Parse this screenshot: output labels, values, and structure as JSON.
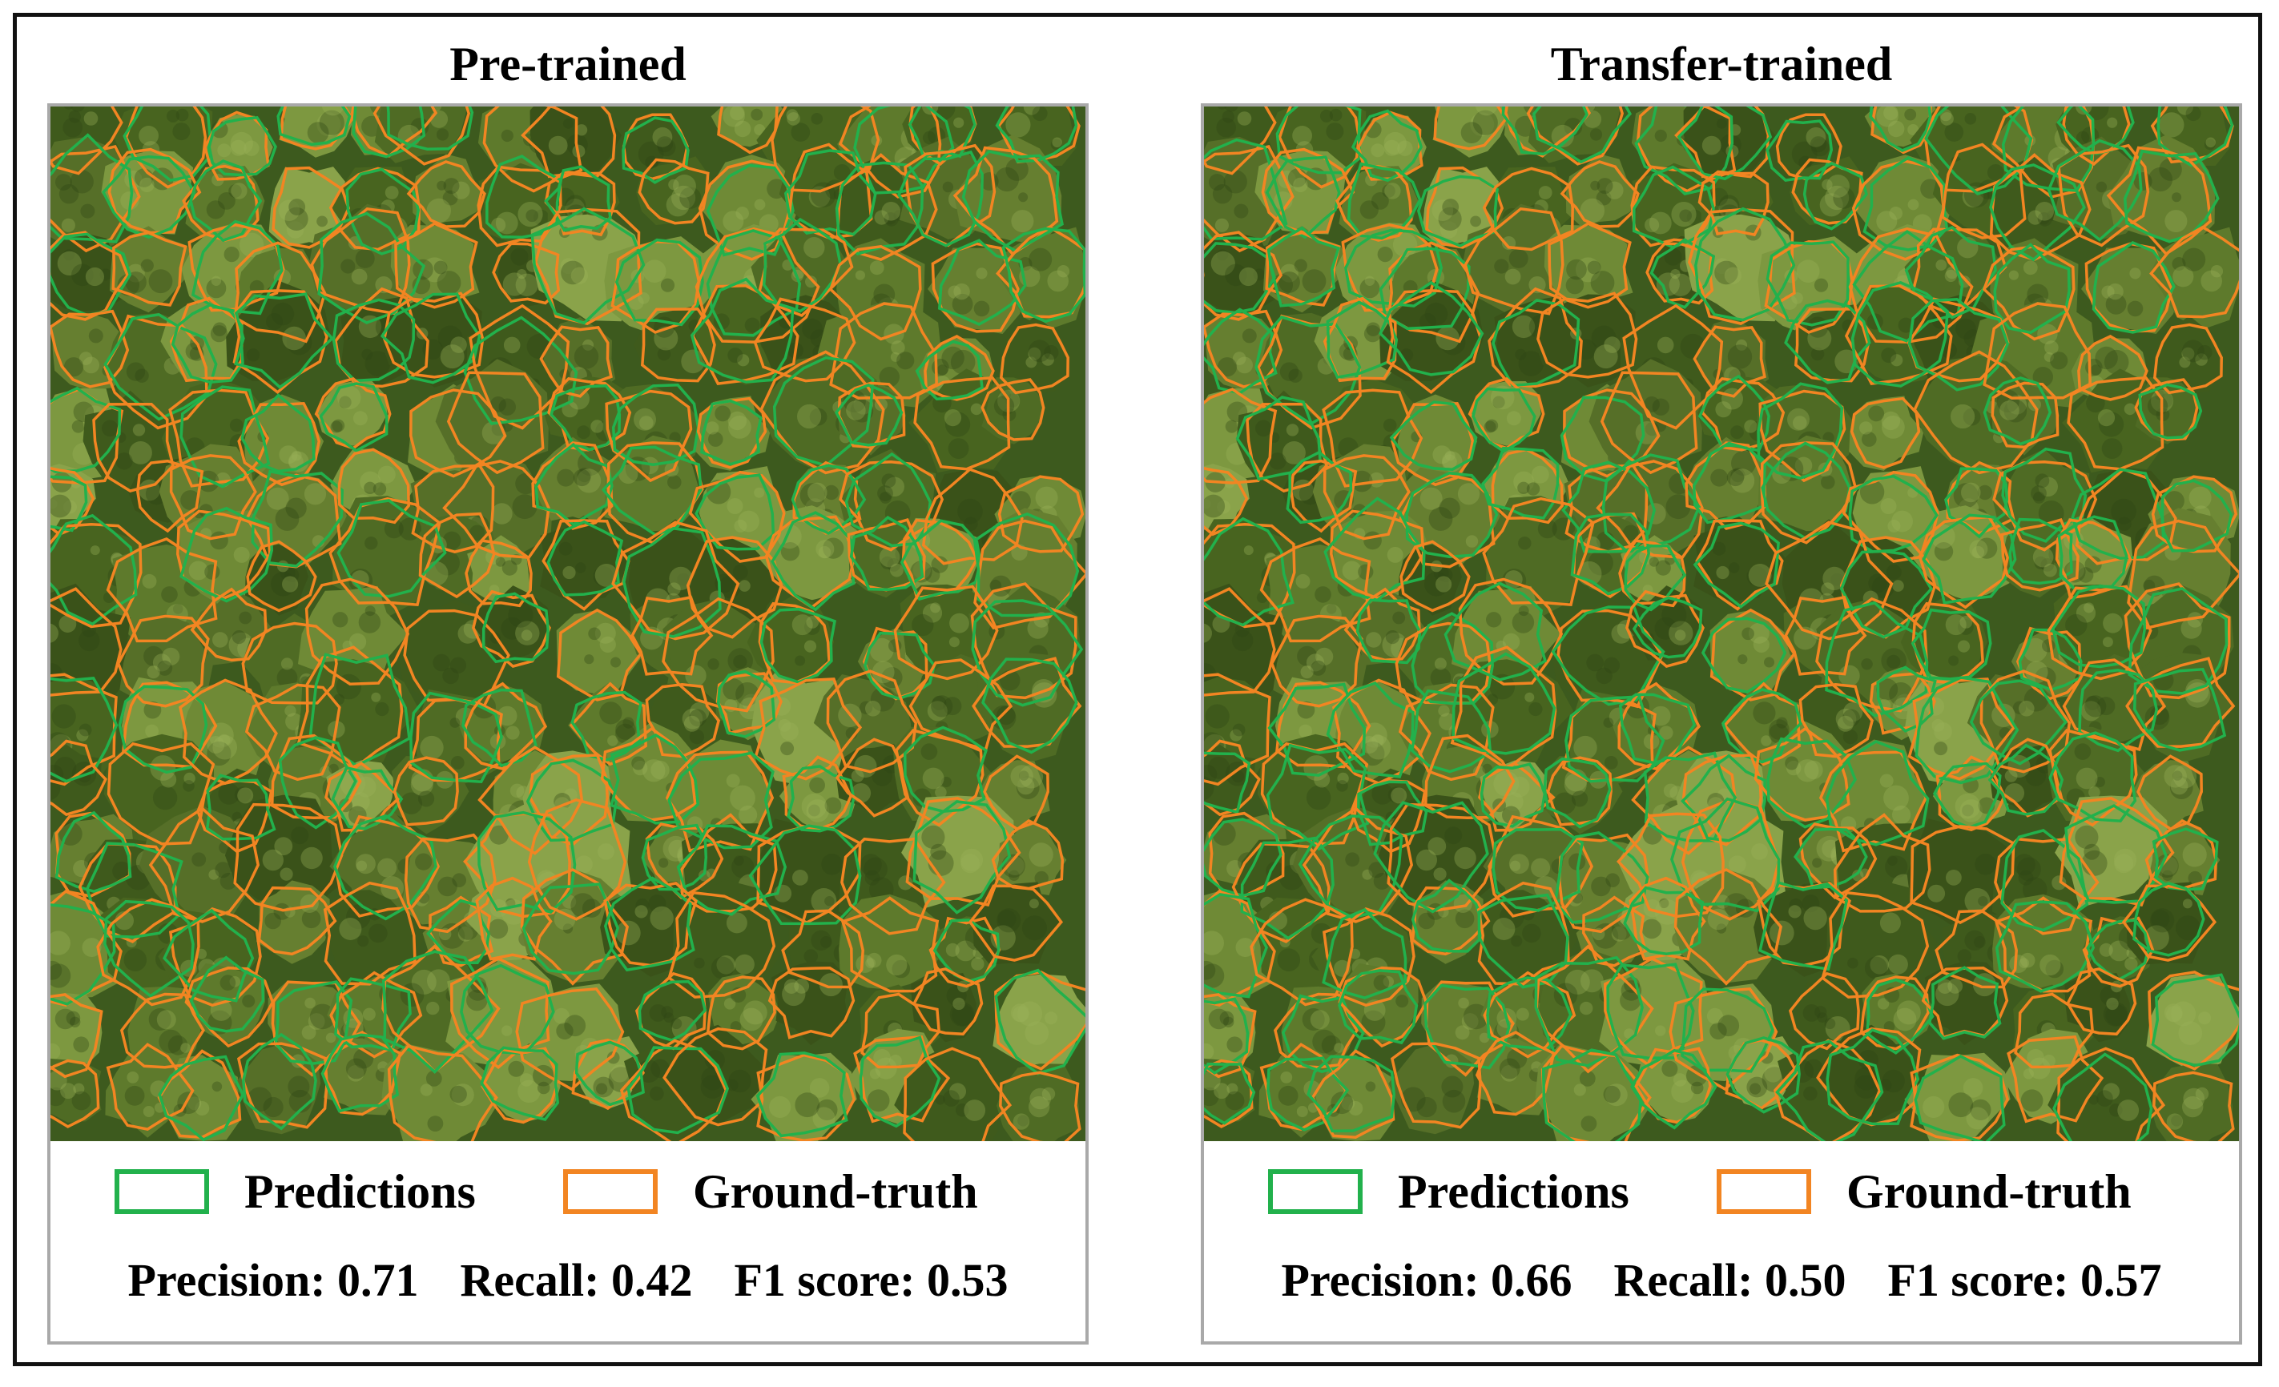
{
  "colors": {
    "prediction": "#22b14c",
    "ground_truth": "#f28522",
    "canopy_base": "#3d5a1e",
    "frame_border": "#111111",
    "panel_border": "#a9a9a9"
  },
  "legend": {
    "predictions_label": "Predictions",
    "ground_truth_label": "Ground-truth"
  },
  "panels": [
    {
      "title": "Pre-trained",
      "precision": "Precision: 0.71",
      "recall": "Recall: 0.42",
      "f1": "F1 score: 0.53"
    },
    {
      "title": "Transfer-trained",
      "precision": "Precision: 0.66",
      "recall": "Recall: 0.50",
      "f1": "F1 score: 0.57"
    }
  ]
}
